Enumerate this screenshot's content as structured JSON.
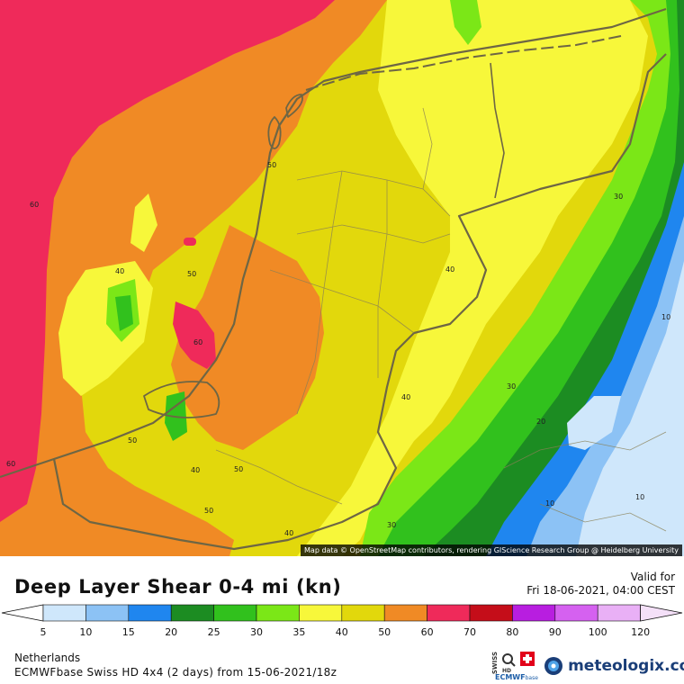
{
  "attribution": "Map data © OpenStreetMap contributors, rendering GIScience Research Group @ Heidelberg University",
  "title": "Deep Layer Shear 0-4 mi (kn)",
  "valid": {
    "label": "Valid for",
    "datetime": "Fri 18-06-2021, 04:00 CEST"
  },
  "scale": {
    "labels": [
      "5",
      "10",
      "15",
      "20",
      "25",
      "30",
      "35",
      "40",
      "50",
      "60",
      "70",
      "80",
      "90",
      "100",
      "120"
    ],
    "colors": [
      "#cfe7fb",
      "#8cc2f5",
      "#1f86ef",
      "#1c8c22",
      "#31c11d",
      "#7be717",
      "#f7f73a",
      "#e2d80c",
      "#f08a25",
      "#ef2a5a",
      "#c50d19",
      "#b81ee0",
      "#d561f0",
      "#e9b0f6"
    ]
  },
  "region": "Netherlands",
  "model": "ECMWFbase Swiss HD 4x4 (2 days) from  15-06-2021/18z",
  "provider": {
    "swiss": "SWISS",
    "hd": "HD",
    "name": "ECMWF",
    "sub": "base"
  },
  "brand": "meteologix.com",
  "contour_labels": [
    "60",
    "50",
    "40",
    "50",
    "60",
    "50",
    "60",
    "40",
    "50",
    "50",
    "40",
    "40",
    "30",
    "30",
    "20",
    "10",
    "10",
    "10",
    "30",
    "40",
    "40",
    "10"
  ],
  "map_colors": {
    "c5": "#cfe7fb",
    "c10": "#8cc2f5",
    "c15": "#1f86ef",
    "c20": "#1c8c22",
    "c25": "#31c11d",
    "c30": "#7be717",
    "c35": "#f7f73a",
    "c40": "#e2d80c",
    "c50": "#f08a25",
    "c60": "#ef2a5a",
    "border": "#6e6644"
  }
}
